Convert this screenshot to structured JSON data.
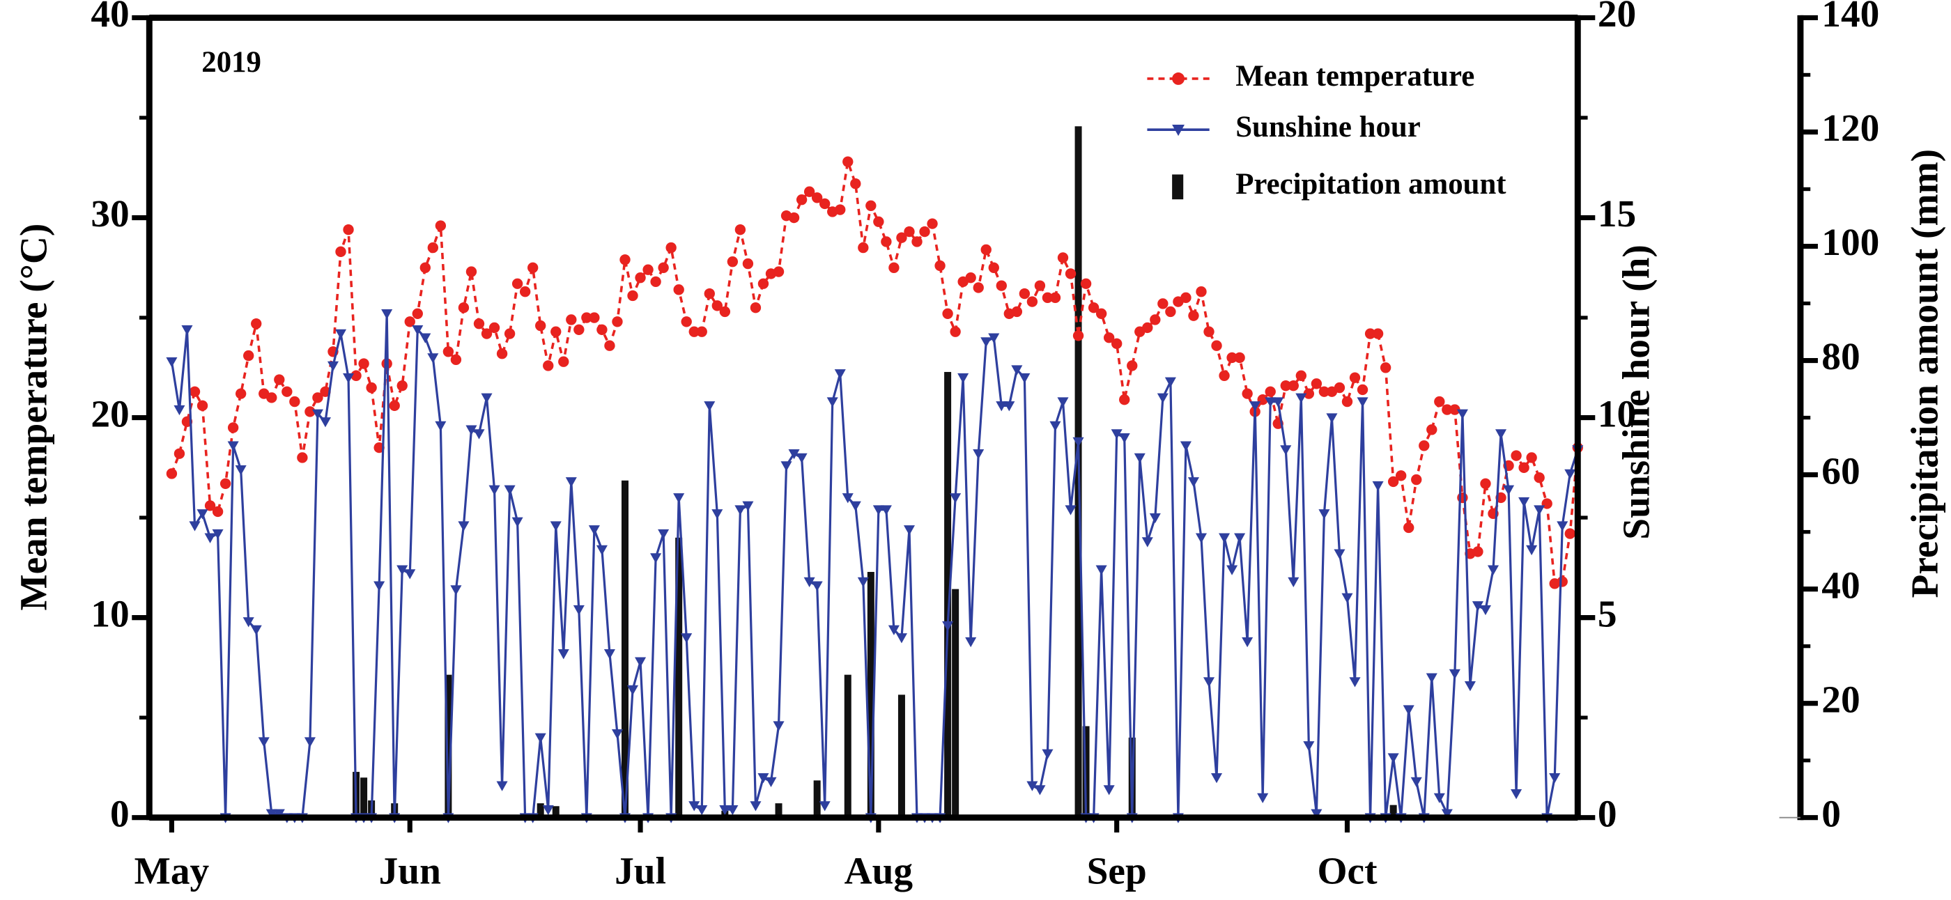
{
  "chart_data": {
    "type": "line",
    "annotation": "2019",
    "y_label": "Mean temperature (°C)",
    "y2_label": "Sunshine hour (h)",
    "y3_label": "Precipitation amount (mm)",
    "categories": [
      "May",
      null,
      null,
      null,
      null,
      null,
      null,
      null,
      null,
      null,
      null,
      null,
      null,
      null,
      null,
      null,
      null,
      null,
      null,
      null,
      null,
      null,
      null,
      null,
      null,
      null,
      null,
      null,
      null,
      null,
      null,
      "Jun",
      null,
      null,
      null,
      null,
      null,
      null,
      null,
      null,
      null,
      null,
      null,
      null,
      null,
      null,
      null,
      null,
      null,
      null,
      null,
      null,
      null,
      null,
      null,
      null,
      null,
      null,
      null,
      null,
      null,
      "Jul",
      null,
      null,
      null,
      null,
      null,
      null,
      null,
      null,
      null,
      null,
      null,
      null,
      null,
      null,
      null,
      null,
      null,
      null,
      null,
      null,
      null,
      null,
      null,
      null,
      null,
      null,
      null,
      null,
      null,
      null,
      "Aug",
      null,
      null,
      null,
      null,
      null,
      null,
      null,
      null,
      null,
      null,
      null,
      null,
      null,
      null,
      null,
      null,
      null,
      null,
      null,
      null,
      null,
      null,
      null,
      null,
      null,
      null,
      null,
      null,
      null,
      null,
      "Sep",
      null,
      null,
      null,
      null,
      null,
      null,
      null,
      null,
      null,
      null,
      null,
      null,
      null,
      null,
      null,
      null,
      null,
      null,
      null,
      null,
      null,
      null,
      null,
      null,
      null,
      null,
      null,
      null,
      null,
      "Oct",
      null,
      null,
      null,
      null,
      null,
      null,
      null,
      null,
      null,
      null,
      null,
      null,
      null,
      null,
      null,
      null,
      null,
      null,
      null,
      null,
      null,
      null,
      null,
      null,
      null,
      null,
      null,
      null,
      null,
      null
    ],
    "ylim": [
      0,
      40
    ],
    "yticks": [
      0,
      10,
      20,
      30,
      40
    ],
    "y2lim": [
      0,
      20
    ],
    "y2ticks": [
      0,
      5,
      10,
      15,
      20
    ],
    "y3lim": [
      0,
      140
    ],
    "y3ticks": [
      0,
      20,
      40,
      60,
      80,
      100,
      120,
      140
    ],
    "legend": "upper right",
    "series": [
      {
        "name": "Mean temperature",
        "type": "line",
        "color": "#e8231f",
        "axis": "y",
        "values": [
          17.2,
          18.2,
          19.8,
          21.3,
          20.6,
          15.6,
          15.3,
          16.7,
          19.5,
          21.2,
          23.1,
          24.7,
          21.2,
          21.0,
          21.9,
          21.3,
          20.8,
          18.0,
          20.3,
          21.0,
          21.3,
          23.3,
          28.3,
          29.4,
          22.1,
          22.7,
          21.5,
          18.5,
          22.7,
          20.6,
          21.6,
          24.8,
          25.2,
          27.5,
          28.5,
          29.6,
          23.3,
          22.9,
          25.5,
          27.3,
          24.7,
          24.2,
          24.5,
          23.2,
          24.2,
          26.7,
          26.3,
          27.5,
          24.6,
          22.6,
          24.3,
          22.8,
          24.9,
          24.4,
          25.0,
          25.0,
          24.4,
          23.6,
          24.8,
          27.9,
          26.1,
          27.0,
          27.4,
          26.8,
          27.5,
          28.5,
          26.4,
          24.8,
          24.3,
          24.3,
          26.2,
          25.6,
          25.3,
          27.8,
          29.4,
          27.7,
          25.5,
          26.7,
          27.2,
          27.3,
          30.1,
          30.0,
          30.9,
          31.3,
          31.0,
          30.7,
          30.3,
          30.4,
          32.8,
          31.7,
          28.5,
          30.6,
          29.8,
          28.8,
          27.5,
          29.0,
          29.3,
          28.8,
          29.3,
          29.7,
          27.6,
          25.2,
          24.3,
          26.8,
          27.0,
          26.5,
          28.4,
          27.5,
          26.6,
          25.2,
          25.3,
          26.2,
          25.8,
          26.6,
          26.0,
          26.0,
          28.0,
          27.2,
          24.1,
          26.7,
          25.5,
          25.2,
          24.0,
          23.7,
          20.9,
          22.6,
          24.3,
          24.5,
          24.9,
          25.7,
          25.3,
          25.8,
          26.0,
          25.1,
          26.3,
          24.3,
          23.6,
          22.1,
          23.0,
          23.0,
          21.2,
          20.3,
          20.9,
          21.3,
          19.7,
          21.6,
          21.6,
          22.1,
          21.2,
          21.7,
          21.3,
          21.3,
          21.5,
          20.8,
          22.0,
          21.4,
          24.2,
          24.2,
          22.5,
          16.8,
          17.1,
          14.5,
          16.9,
          18.6,
          19.4,
          20.8,
          20.4,
          20.4,
          16.0,
          13.2,
          13.3,
          16.7,
          15.2,
          16.0,
          17.6,
          18.1,
          17.5,
          18.0,
          17.0,
          15.7,
          11.7,
          11.8,
          14.2,
          18.5
        ]
      },
      {
        "name": "Sunshine hour",
        "type": "line",
        "color": "#2e3f9e",
        "axis": "y2",
        "values": [
          11.4,
          10.2,
          12.2,
          7.3,
          7.6,
          7.0,
          7.1,
          0,
          9.3,
          8.7,
          4.9,
          4.7,
          1.9,
          0.1,
          0.1,
          0,
          0,
          0,
          1.9,
          10.1,
          9.9,
          11.3,
          12.1,
          11.0,
          0,
          0,
          0,
          5.8,
          12.6,
          0,
          6.2,
          6.1,
          12.2,
          12.0,
          11.5,
          9.8,
          0,
          5.7,
          7.3,
          9.7,
          9.6,
          10.5,
          8.2,
          0.8,
          8.2,
          7.4,
          0,
          0,
          2.0,
          0.2,
          7.3,
          4.1,
          8.4,
          5.2,
          0,
          7.2,
          6.7,
          4.1,
          2.1,
          0,
          3.2,
          3.9,
          0,
          6.5,
          7.1,
          0,
          8.0,
          4.5,
          0.3,
          0.2,
          10.3,
          7.6,
          0.2,
          0.2,
          7.7,
          7.8,
          0.3,
          1.0,
          0.9,
          2.3,
          8.8,
          9.1,
          9.0,
          5.9,
          5.8,
          0.3,
          10.4,
          11.1,
          8.0,
          7.8,
          5.9,
          0,
          7.7,
          7.7,
          4.7,
          4.5,
          7.2,
          0,
          0,
          0,
          0,
          4.8,
          8.0,
          11.0,
          4.4,
          9.1,
          11.9,
          12.0,
          10.3,
          10.3,
          11.2,
          11.0,
          0.8,
          0.7,
          1.6,
          9.8,
          10.4,
          7.7,
          9.4,
          0,
          0,
          6.2,
          0.7,
          9.6,
          9.5,
          0,
          9.0,
          6.9,
          7.5,
          10.5,
          10.9,
          0,
          9.3,
          8.4,
          7.0,
          3.4,
          1.0,
          7.0,
          6.2,
          7.0,
          4.4,
          10.3,
          0.5,
          10.4,
          10.4,
          9.2,
          5.9,
          10.5,
          1.8,
          0.1,
          7.6,
          10.0,
          6.6,
          5.5,
          3.4,
          10.4,
          0,
          8.3,
          0,
          1.5,
          0,
          2.7,
          0.9,
          0,
          3.5,
          0.5,
          0.1,
          3.6,
          10.1,
          3.3,
          5.3,
          5.2,
          6.2,
          9.6,
          8.2,
          0.6,
          7.9,
          6.7,
          7.7,
          0,
          1.0,
          7.3,
          8.6,
          9.2
        ]
      },
      {
        "name": "Precipitation amount",
        "type": "bar",
        "color": "#111111",
        "axis": "y3",
        "values": [
          0,
          0,
          0,
          0,
          0,
          0,
          0,
          0,
          0,
          0,
          0,
          0,
          0,
          0,
          0,
          0,
          0,
          0,
          0,
          0,
          0,
          0,
          0,
          0,
          8,
          7,
          3,
          0,
          0,
          2.5,
          0,
          0,
          0,
          0,
          0,
          0,
          25,
          0,
          0,
          0,
          0.4,
          0,
          0,
          0,
          0,
          0,
          0,
          0,
          2.5,
          0,
          2,
          0,
          0,
          0,
          0,
          0,
          0,
          0,
          0,
          59,
          0,
          0,
          0,
          0,
          0,
          0,
          49,
          0,
          0,
          0,
          0,
          0,
          1.2,
          0,
          0,
          0,
          0,
          0,
          0,
          2.5,
          0,
          0,
          0,
          0,
          6.5,
          0,
          0,
          0,
          25,
          0,
          0,
          43,
          0,
          0,
          0,
          21.5,
          0,
          0,
          0,
          0,
          0,
          78,
          40,
          0,
          0,
          0,
          0,
          0,
          0,
          0,
          0.3,
          0,
          0,
          0,
          0,
          0,
          0,
          0,
          121,
          16,
          0,
          0,
          0,
          0,
          0,
          14,
          0,
          0,
          0,
          0,
          0,
          0,
          0,
          0,
          0,
          0,
          0,
          0,
          0,
          0,
          0,
          0,
          0,
          0,
          0,
          0,
          0,
          0,
          0,
          0,
          0,
          0,
          0,
          0,
          0,
          0.5,
          0,
          0,
          0,
          2.2,
          0,
          0,
          0,
          0,
          0,
          0,
          0,
          0,
          0,
          0,
          0,
          0,
          0,
          0,
          0,
          0,
          0,
          0,
          0,
          0,
          0,
          0,
          0,
          0
        ]
      }
    ]
  }
}
